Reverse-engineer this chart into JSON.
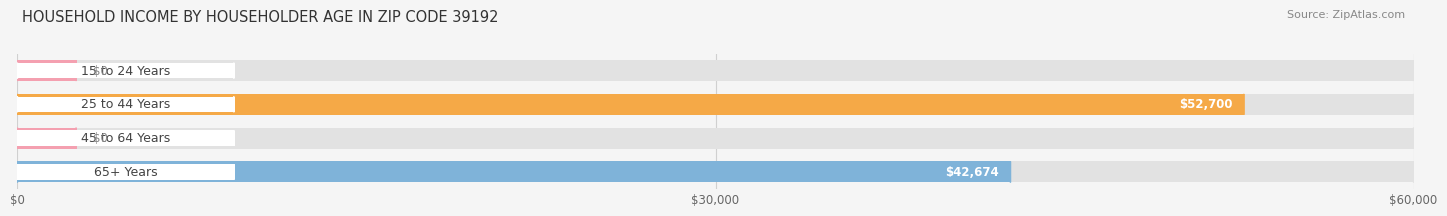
{
  "title": "HOUSEHOLD INCOME BY HOUSEHOLDER AGE IN ZIP CODE 39192",
  "source": "Source: ZipAtlas.com",
  "categories": [
    "15 to 24 Years",
    "25 to 44 Years",
    "45 to 64 Years",
    "65+ Years"
  ],
  "values": [
    0,
    52700,
    0,
    42674
  ],
  "bar_colors": [
    "#f4a0b0",
    "#f5a947",
    "#f4a0b0",
    "#7fb3d9"
  ],
  "value_labels": [
    "$0",
    "$52,700",
    "$0",
    "$42,674"
  ],
  "xlim": [
    0,
    60000
  ],
  "xtick_labels": [
    "$0",
    "$30,000",
    "$60,000"
  ],
  "xtick_vals": [
    0,
    30000,
    60000
  ],
  "bar_height": 0.62,
  "background_color": "#f5f5f5",
  "bar_bg_color": "#e2e2e2",
  "title_fontsize": 10.5,
  "source_fontsize": 8,
  "label_fontsize": 9,
  "value_fontsize": 8.5,
  "tick_fontsize": 8.5
}
